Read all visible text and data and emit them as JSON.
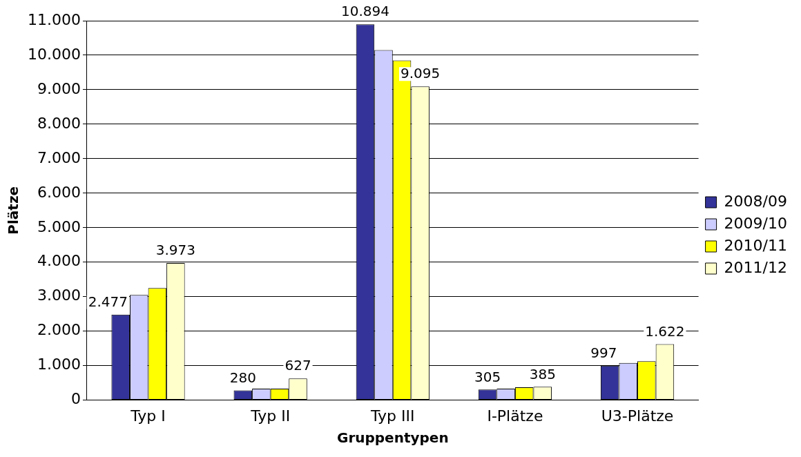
{
  "chart_data": {
    "type": "bar",
    "xlabel": "Gruppentypen",
    "ylabel": "Plätze",
    "categories": [
      "Typ I",
      "Typ II",
      "Typ III",
      "I-Plätze",
      "U3-Plätze"
    ],
    "series": [
      {
        "name": "2008/09",
        "color": "#333399",
        "values": [
          2477,
          280,
          10894,
          305,
          997
        ],
        "value_labels": [
          "2.477",
          "280",
          "10.894",
          "305",
          "997"
        ]
      },
      {
        "name": "2009/10",
        "color": "#ccccff",
        "values": [
          3050,
          330,
          10150,
          330,
          1080
        ],
        "value_labels": [
          null,
          null,
          null,
          null,
          null
        ]
      },
      {
        "name": "2010/11",
        "color": "#ffff00",
        "values": [
          3250,
          330,
          9850,
          370,
          1130
        ],
        "value_labels": [
          null,
          null,
          null,
          null,
          null
        ]
      },
      {
        "name": "2011/12",
        "color": "#ffffcc",
        "values": [
          3973,
          627,
          9095,
          385,
          1622
        ],
        "value_labels": [
          "3.973",
          "627",
          "9.095",
          "385",
          "1.622"
        ]
      }
    ],
    "ylim": [
      0,
      11000
    ],
    "yticks": [
      {
        "value": 0,
        "label": "0"
      },
      {
        "value": 1000,
        "label": "1.000"
      },
      {
        "value": 2000,
        "label": "2.000"
      },
      {
        "value": 3000,
        "label": "3.000"
      },
      {
        "value": 4000,
        "label": "4.000"
      },
      {
        "value": 5000,
        "label": "5.000"
      },
      {
        "value": 6000,
        "label": "6.000"
      },
      {
        "value": 7000,
        "label": "7.000"
      },
      {
        "value": 8000,
        "label": "8.000"
      },
      {
        "value": 9000,
        "label": "9.000"
      },
      {
        "value": 10000,
        "label": "10.000"
      },
      {
        "value": 11000,
        "label": "11.000"
      }
    ],
    "grid": "y",
    "legend": "right"
  }
}
